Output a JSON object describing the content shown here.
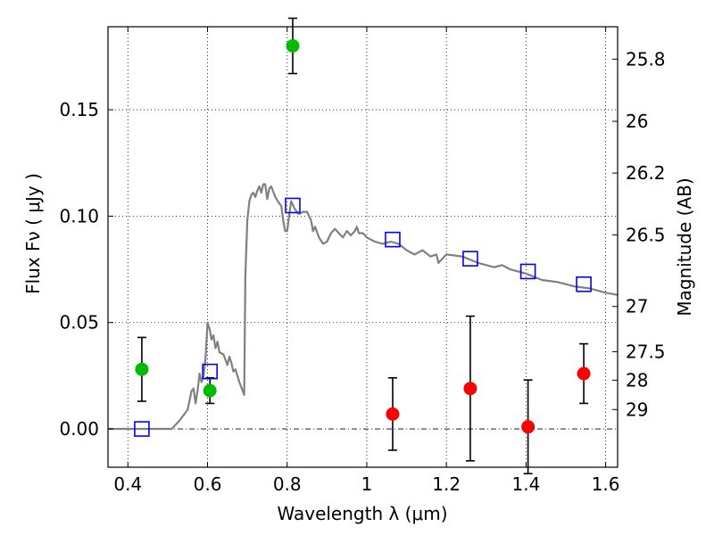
{
  "chart_data": {
    "type": "scatter",
    "xlabel": "Wavelength  λ (μm)",
    "ylabel": "Flux  Fν  ( μJy )",
    "y2label": "Magnitude (AB)",
    "xlim": [
      0.35,
      1.63
    ],
    "ylim": [
      -0.018,
      0.189
    ],
    "grid": true,
    "x_ticks": [
      {
        "value": 0.4,
        "label": "0.4"
      },
      {
        "value": 0.6,
        "label": "0.6"
      },
      {
        "value": 0.8,
        "label": "0.8"
      },
      {
        "value": 1.0,
        "label": "1"
      },
      {
        "value": 1.2,
        "label": "1.2"
      },
      {
        "value": 1.4,
        "label": "1.4"
      },
      {
        "value": 1.6,
        "label": "1.6"
      }
    ],
    "y_ticks": [
      {
        "value": 0.0,
        "label": "0.00"
      },
      {
        "value": 0.05,
        "label": "0.05"
      },
      {
        "value": 0.1,
        "label": "0.10"
      },
      {
        "value": 0.15,
        "label": "0.15"
      }
    ],
    "y2_ticks": [
      {
        "mag": 25.8,
        "label": "25.8"
      },
      {
        "mag": 26.0,
        "label": "26"
      },
      {
        "mag": 26.2,
        "label": "26.2"
      },
      {
        "mag": 26.5,
        "label": "26.5"
      },
      {
        "mag": 27.0,
        "label": "27"
      },
      {
        "mag": 27.5,
        "label": "27.5"
      },
      {
        "mag": 28.0,
        "label": "28"
      },
      {
        "mag": 29.0,
        "label": "29"
      }
    ],
    "model_sed": {
      "color": "#808080",
      "points": [
        [
          0.35,
          0.0
        ],
        [
          0.51,
          0.0
        ],
        [
          0.53,
          0.004
        ],
        [
          0.55,
          0.009
        ],
        [
          0.56,
          0.018
        ],
        [
          0.565,
          0.019
        ],
        [
          0.57,
          0.012
        ],
        [
          0.575,
          0.018
        ],
        [
          0.58,
          0.026
        ],
        [
          0.585,
          0.022
        ],
        [
          0.59,
          0.025
        ],
        [
          0.595,
          0.033
        ],
        [
          0.6,
          0.05
        ],
        [
          0.605,
          0.047
        ],
        [
          0.61,
          0.042
        ],
        [
          0.615,
          0.044
        ],
        [
          0.62,
          0.038
        ],
        [
          0.625,
          0.041
        ],
        [
          0.63,
          0.036
        ],
        [
          0.64,
          0.035
        ],
        [
          0.65,
          0.03
        ],
        [
          0.655,
          0.034
        ],
        [
          0.66,
          0.031
        ],
        [
          0.665,
          0.027
        ],
        [
          0.67,
          0.028
        ],
        [
          0.68,
          0.022
        ],
        [
          0.69,
          0.017
        ],
        [
          0.692,
          0.016
        ],
        [
          0.695,
          0.072
        ],
        [
          0.7,
          0.098
        ],
        [
          0.705,
          0.107
        ],
        [
          0.71,
          0.11
        ],
        [
          0.715,
          0.111
        ],
        [
          0.72,
          0.109
        ],
        [
          0.725,
          0.112
        ],
        [
          0.73,
          0.114
        ],
        [
          0.735,
          0.111
        ],
        [
          0.74,
          0.115
        ],
        [
          0.745,
          0.115
        ],
        [
          0.75,
          0.108
        ],
        [
          0.755,
          0.113
        ],
        [
          0.76,
          0.114
        ],
        [
          0.77,
          0.109
        ],
        [
          0.78,
          0.106
        ],
        [
          0.785,
          0.105
        ],
        [
          0.79,
          0.098
        ],
        [
          0.795,
          0.093
        ],
        [
          0.8,
          0.093
        ],
        [
          0.81,
          0.107
        ],
        [
          0.82,
          0.103
        ],
        [
          0.83,
          0.101
        ],
        [
          0.84,
          0.102
        ],
        [
          0.85,
          0.102
        ],
        [
          0.86,
          0.098
        ],
        [
          0.865,
          0.093
        ],
        [
          0.87,
          0.095
        ],
        [
          0.88,
          0.09
        ],
        [
          0.89,
          0.087
        ],
        [
          0.9,
          0.088
        ],
        [
          0.91,
          0.092
        ],
        [
          0.92,
          0.094
        ],
        [
          0.93,
          0.092
        ],
        [
          0.94,
          0.09
        ],
        [
          0.95,
          0.093
        ],
        [
          0.96,
          0.091
        ],
        [
          0.97,
          0.093
        ],
        [
          0.975,
          0.095
        ],
        [
          0.98,
          0.092
        ],
        [
          0.99,
          0.092
        ],
        [
          1.0,
          0.09
        ],
        [
          1.02,
          0.088
        ],
        [
          1.04,
          0.087
        ],
        [
          1.06,
          0.088
        ],
        [
          1.08,
          0.087
        ],
        [
          1.1,
          0.084
        ],
        [
          1.12,
          0.082
        ],
        [
          1.14,
          0.084
        ],
        [
          1.16,
          0.081
        ],
        [
          1.175,
          0.082
        ],
        [
          1.18,
          0.078
        ],
        [
          1.19,
          0.08
        ],
        [
          1.2,
          0.082
        ],
        [
          1.24,
          0.081
        ],
        [
          1.28,
          0.078
        ],
        [
          1.3,
          0.077
        ],
        [
          1.32,
          0.076
        ],
        [
          1.34,
          0.077
        ],
        [
          1.36,
          0.075
        ],
        [
          1.4,
          0.073
        ],
        [
          1.44,
          0.07
        ],
        [
          1.48,
          0.069
        ],
        [
          1.52,
          0.067
        ],
        [
          1.56,
          0.066
        ],
        [
          1.6,
          0.064
        ],
        [
          1.63,
          0.063
        ]
      ]
    },
    "model_photometry": {
      "color": "#0000ff",
      "points": [
        [
          0.435,
          0.0
        ],
        [
          0.606,
          0.027
        ],
        [
          0.814,
          0.105
        ],
        [
          1.065,
          0.089
        ],
        [
          1.26,
          0.08
        ],
        [
          1.405,
          0.074
        ],
        [
          1.545,
          0.068
        ]
      ]
    },
    "detections": {
      "color": "#00bb00",
      "points": [
        {
          "x": 0.435,
          "y": 0.028,
          "err": 0.015
        },
        {
          "x": 0.606,
          "y": 0.018,
          "err": 0.006
        },
        {
          "x": 0.814,
          "y": 0.18,
          "err": 0.013
        }
      ]
    },
    "nondetections": {
      "color": "#ff0000",
      "points": [
        {
          "x": 1.065,
          "y": 0.007,
          "err": 0.017
        },
        {
          "x": 1.26,
          "y": 0.019,
          "err": 0.034
        },
        {
          "x": 1.405,
          "y": 0.001,
          "err": 0.022
        },
        {
          "x": 1.545,
          "y": 0.026,
          "err": 0.014
        }
      ]
    }
  }
}
